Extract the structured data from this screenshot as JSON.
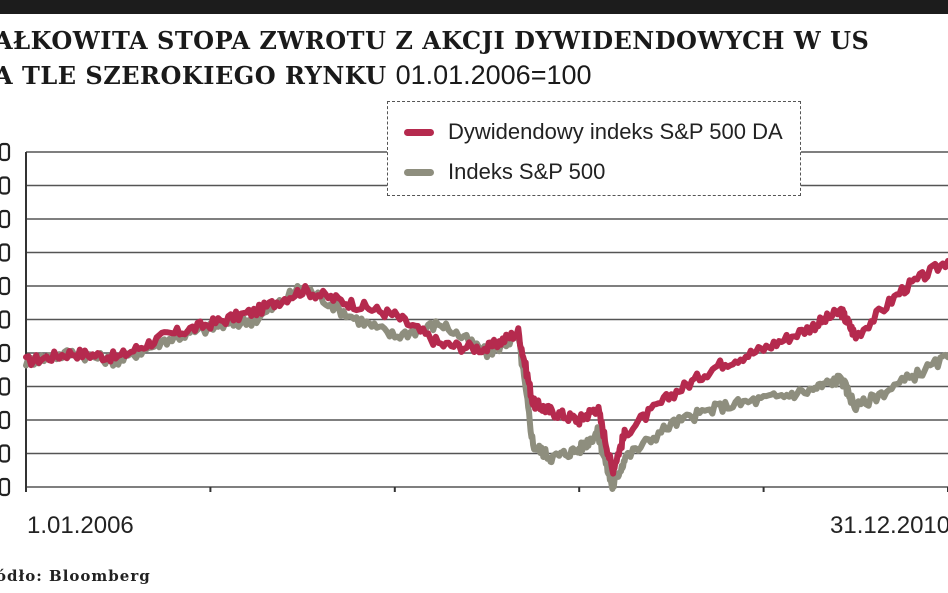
{
  "title": {
    "line1": "AŁKOWITA STOPA ZWROTU Z AKCJI DYWIDENDOWYCH W US",
    "line2_bold": "A TLE SZEROKIEGO RYNKU",
    "line2_normal": "01.01.2006=100"
  },
  "source": "ódło: Bloomberg",
  "chart_data": {
    "type": "line",
    "title": "AŁKOWITA STOPA ZWROTU Z AKCJI DYWIDENDOWYCH W US A TLE SZEROKIEGO RYNKU 01.01.2006=100",
    "x_start_label": "1.01.2006",
    "x_end_label": "31.12.2010",
    "x": [
      2006.0,
      2006.25,
      2006.5,
      2006.75,
      2007.0,
      2007.25,
      2007.5,
      2007.75,
      2008.0,
      2008.25,
      2008.5,
      2008.67,
      2008.75,
      2008.85,
      2009.0,
      2009.1,
      2009.18,
      2009.25,
      2009.5,
      2009.75,
      2010.0,
      2010.25,
      2010.42,
      2010.5,
      2010.75,
      2011.0
    ],
    "xlim": [
      2006.0,
      2011.0
    ],
    "ylim": [
      70,
      150
    ],
    "series": [
      {
        "name": "Dywidendowy indeks S&P 500 DA",
        "color": "#b52a4e",
        "values": [
          100,
          102,
          101,
          106,
          109,
          112,
          117,
          114,
          111,
          104,
          103,
          107,
          90,
          88,
          86,
          89,
          74,
          83,
          92,
          99,
          103,
          108,
          112,
          106,
          117,
          124
        ]
      },
      {
        "name": "Indeks S&P 500",
        "color": "#8e8e7e",
        "values": [
          100,
          102,
          100,
          105,
          108,
          110,
          118,
          111,
          106,
          109,
          102,
          106,
          80,
          77,
          79,
          83,
          70,
          77,
          85,
          89,
          91,
          93,
          96,
          89,
          95,
          101
        ]
      }
    ],
    "grid": true,
    "legend_position": "top-center"
  }
}
